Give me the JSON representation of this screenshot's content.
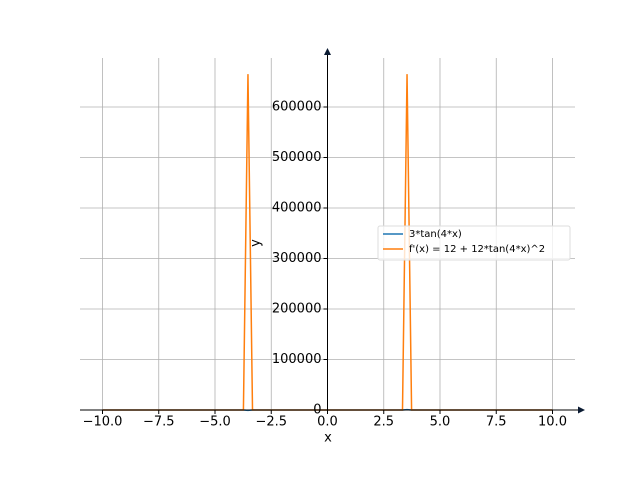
{
  "chart_data": {
    "type": "line",
    "x": [
      -10,
      -3.737,
      -3.535,
      -3.333,
      3.333,
      3.535,
      3.737,
      10
    ],
    "series": [
      {
        "name": "3*tan(4*x)",
        "color": "#1f77b4",
        "values": [
          3.36,
          2.84,
          -705,
          -2.89,
          2.89,
          705,
          -2.84,
          -3.36
        ]
      },
      {
        "name": "f'(x) = 12 + 12*tan(4*x)^2",
        "color": "#ff7f0e",
        "values": [
          27,
          23,
          665000,
          23,
          23,
          665000,
          23,
          27
        ]
      }
    ],
    "xlabel": "x",
    "ylabel": "y",
    "xlim": [
      -11,
      11
    ],
    "ylim": [
      0,
      697000
    ],
    "xticks": [
      {
        "value": -10,
        "label": "−10.0"
      },
      {
        "value": -7.5,
        "label": "−7.5"
      },
      {
        "value": -5,
        "label": "−5.0"
      },
      {
        "value": -2.5,
        "label": "−2.5"
      },
      {
        "value": 0,
        "label": "0.0"
      },
      {
        "value": 2.5,
        "label": "2.5"
      },
      {
        "value": 5,
        "label": "5.0"
      },
      {
        "value": 7.5,
        "label": "7.5"
      },
      {
        "value": 10,
        "label": "10.0"
      }
    ],
    "yticks": [
      0,
      100000,
      200000,
      300000,
      400000,
      500000,
      600000
    ],
    "grid": true,
    "legend": "right"
  }
}
